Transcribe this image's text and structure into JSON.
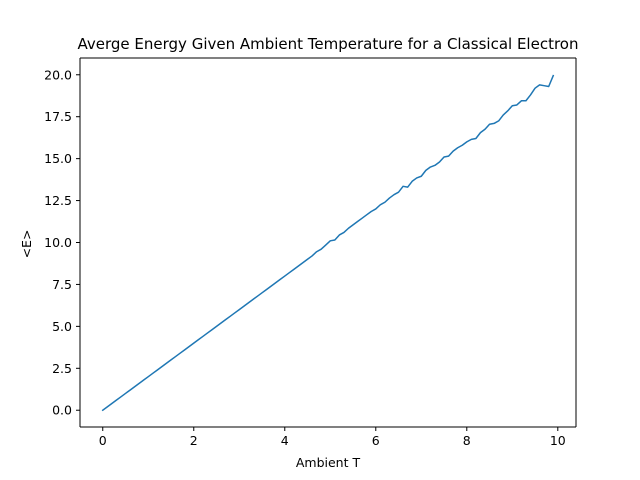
{
  "chart_data": {
    "type": "line",
    "title": "Averge Energy Given Ambient Temperature for a Classical Electron",
    "xlabel": "Ambient T",
    "ylabel": "<E>",
    "xlim": [
      -0.5,
      10.4
    ],
    "ylim": [
      -1.0,
      21.0
    ],
    "x_ticks": [
      0,
      2,
      4,
      6,
      8,
      10
    ],
    "x_tick_labels": [
      "0",
      "2",
      "4",
      "6",
      "8",
      "10"
    ],
    "y_ticks": [
      0.0,
      2.5,
      5.0,
      7.5,
      10.0,
      12.5,
      15.0,
      17.5,
      20.0
    ],
    "y_tick_labels": [
      "0.0",
      "2.5",
      "5.0",
      "7.5",
      "10.0",
      "12.5",
      "15.0",
      "17.5",
      "20.0"
    ],
    "grid": false,
    "legend": "none",
    "line_color": "#1f77b4",
    "series": [
      {
        "x": [
          0.0,
          0.1,
          0.2,
          0.3,
          0.4,
          0.5,
          0.6,
          0.7,
          0.8,
          0.9,
          1.0,
          1.1,
          1.2,
          1.3,
          1.4,
          1.5,
          1.6,
          1.7,
          1.8,
          1.9,
          2.0,
          2.1,
          2.2,
          2.3,
          2.4,
          2.5,
          2.6,
          2.7,
          2.8,
          2.9,
          3.0,
          3.1,
          3.2,
          3.3,
          3.4,
          3.5,
          3.6,
          3.7,
          3.8,
          3.9,
          4.0,
          4.1,
          4.2,
          4.3,
          4.4,
          4.5,
          4.6,
          4.7,
          4.8,
          4.9,
          5.0,
          5.1,
          5.2,
          5.3,
          5.4,
          5.5,
          5.6,
          5.7,
          5.8,
          5.9,
          6.0,
          6.1,
          6.2,
          6.3,
          6.4,
          6.5,
          6.6,
          6.7,
          6.8,
          6.9,
          7.0,
          7.1,
          7.2,
          7.3,
          7.4,
          7.5,
          7.6,
          7.7,
          7.8,
          7.9,
          8.0,
          8.1,
          8.2,
          8.3,
          8.4,
          8.5,
          8.6,
          8.7,
          8.8,
          8.9,
          9.0,
          9.1,
          9.2,
          9.3,
          9.4,
          9.5,
          9.6,
          9.7,
          9.8,
          9.9
        ],
        "values": [
          0.0,
          0.2,
          0.4,
          0.6,
          0.8,
          1.0,
          1.2,
          1.4,
          1.6,
          1.8,
          2.0,
          2.2,
          2.4,
          2.6,
          2.8,
          3.0,
          3.2,
          3.4,
          3.6,
          3.8,
          4.0,
          4.2,
          4.4,
          4.6,
          4.8,
          5.0,
          5.2,
          5.4,
          5.6,
          5.8,
          6.0,
          6.2,
          6.4,
          6.6,
          6.8,
          7.0,
          7.2,
          7.4,
          7.6,
          7.8,
          8.0,
          8.2,
          8.4,
          8.6,
          8.8,
          9.0,
          9.2,
          9.45,
          9.6,
          9.85,
          10.1,
          10.15,
          10.45,
          10.6,
          10.85,
          11.05,
          11.25,
          11.45,
          11.65,
          11.85,
          12.0,
          12.25,
          12.4,
          12.65,
          12.85,
          13.0,
          13.35,
          13.3,
          13.65,
          13.85,
          13.95,
          14.3,
          14.5,
          14.6,
          14.8,
          15.1,
          15.15,
          15.45,
          15.65,
          15.8,
          16.0,
          16.15,
          16.2,
          16.55,
          16.75,
          17.05,
          17.1,
          17.25,
          17.6,
          17.85,
          18.15,
          18.2,
          18.45,
          18.45,
          18.8,
          19.2,
          19.4,
          19.35,
          19.3,
          19.95
        ]
      }
    ]
  }
}
